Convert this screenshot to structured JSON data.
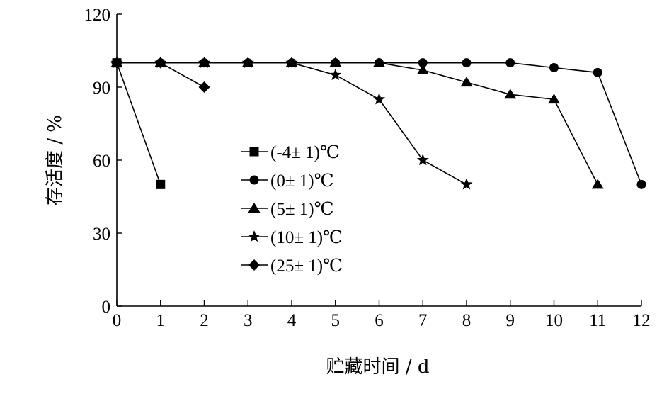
{
  "chart_data": {
    "type": "line",
    "xlabel": "贮藏时间 / d",
    "ylabel": "存活度 / %",
    "xlim": [
      0,
      12
    ],
    "ylim": [
      0,
      120
    ],
    "x_ticks": [
      0,
      1,
      2,
      3,
      4,
      5,
      6,
      7,
      8,
      9,
      10,
      11,
      12
    ],
    "y_ticks": [
      0,
      30,
      60,
      90,
      120
    ],
    "grid": false,
    "legend_position": "center-left",
    "series": [
      {
        "name": "(-4± 1)℃",
        "marker": "square",
        "x": [
          0,
          1
        ],
        "y": [
          100,
          50
        ]
      },
      {
        "name": "(0± 1)℃",
        "marker": "circle",
        "x": [
          0,
          1,
          2,
          3,
          4,
          5,
          6,
          7,
          8,
          9,
          10,
          11,
          12
        ],
        "y": [
          100,
          100,
          100,
          100,
          100,
          100,
          100,
          100,
          100,
          100,
          98,
          96,
          50
        ]
      },
      {
        "name": "(5± 1)℃",
        "marker": "triangle",
        "x": [
          0,
          1,
          2,
          3,
          4,
          5,
          6,
          7,
          8,
          9,
          10,
          11
        ],
        "y": [
          100,
          100,
          100,
          100,
          100,
          100,
          100,
          97,
          92,
          87,
          85,
          50
        ]
      },
      {
        "name": "(10± 1)℃",
        "marker": "star",
        "x": [
          0,
          1,
          2,
          3,
          4,
          5,
          6,
          7,
          8
        ],
        "y": [
          100,
          100,
          100,
          100,
          100,
          95,
          85,
          60,
          50
        ]
      },
      {
        "name": "(25± 1)℃",
        "marker": "diamond",
        "x": [
          0,
          1,
          2
        ],
        "y": [
          100,
          100,
          90
        ]
      }
    ]
  }
}
